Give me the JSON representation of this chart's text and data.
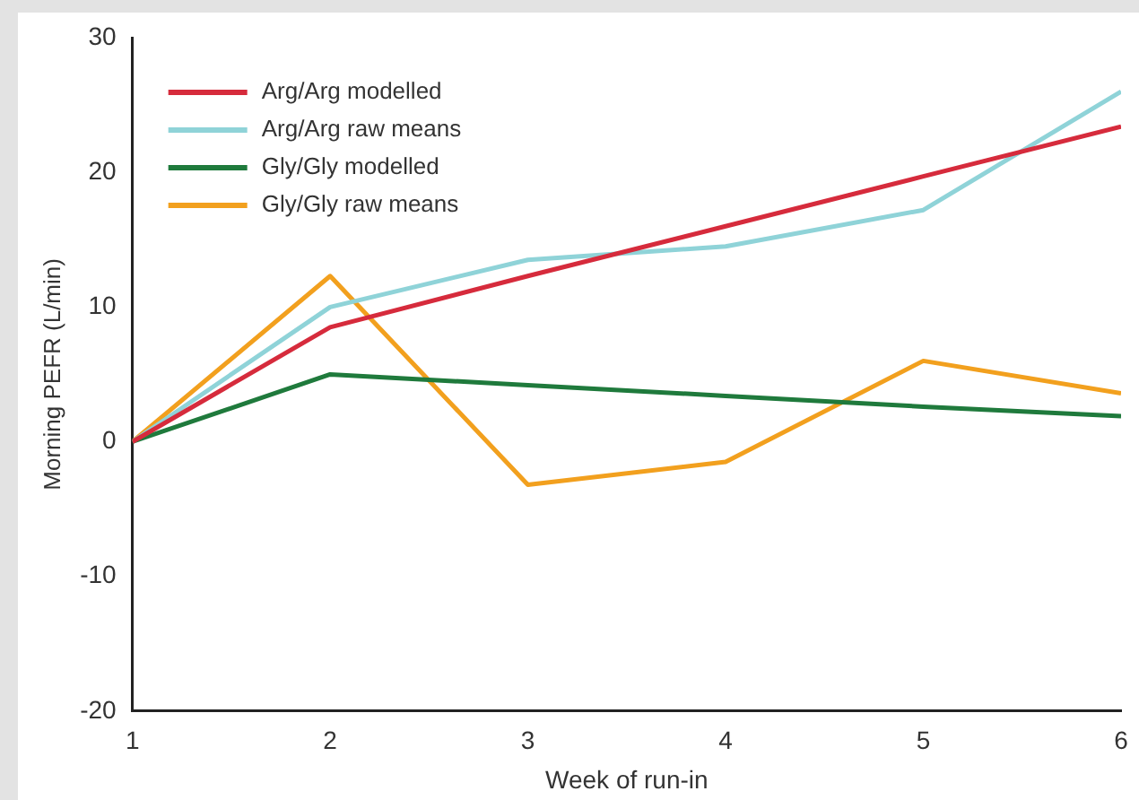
{
  "chart_data": {
    "type": "line",
    "xlabel": "Week of run-in",
    "ylabel": "Morning PEFR (L/min)",
    "x": [
      1,
      2,
      3,
      4,
      5,
      6
    ],
    "xlim": [
      1,
      6
    ],
    "xticks": [
      1,
      2,
      3,
      4,
      5,
      6
    ],
    "ylim": [
      -20,
      30
    ],
    "yticks": [
      -20,
      -10,
      0,
      10,
      20,
      30
    ],
    "grid": false,
    "legend": "top left",
    "marker": "none",
    "line_style": "solid",
    "series": [
      {
        "name": "Arg/Arg modelled",
        "color": "#d62b3c",
        "values": [
          0,
          8.5,
          12.3,
          16,
          19.7,
          23.4
        ]
      },
      {
        "name": "Arg/Arg raw means",
        "color": "#8fd3d8",
        "values": [
          0,
          10,
          13.5,
          14.5,
          17.2,
          26
        ]
      },
      {
        "name": "Gly/Gly modelled",
        "color": "#1f7a3c",
        "values": [
          0,
          5,
          4.2,
          3.4,
          2.6,
          1.9
        ]
      },
      {
        "name": "Gly/Gly raw means",
        "color": "#f2a01e",
        "values": [
          0,
          12.3,
          -3.2,
          -1.5,
          6,
          3.6
        ]
      }
    ]
  }
}
